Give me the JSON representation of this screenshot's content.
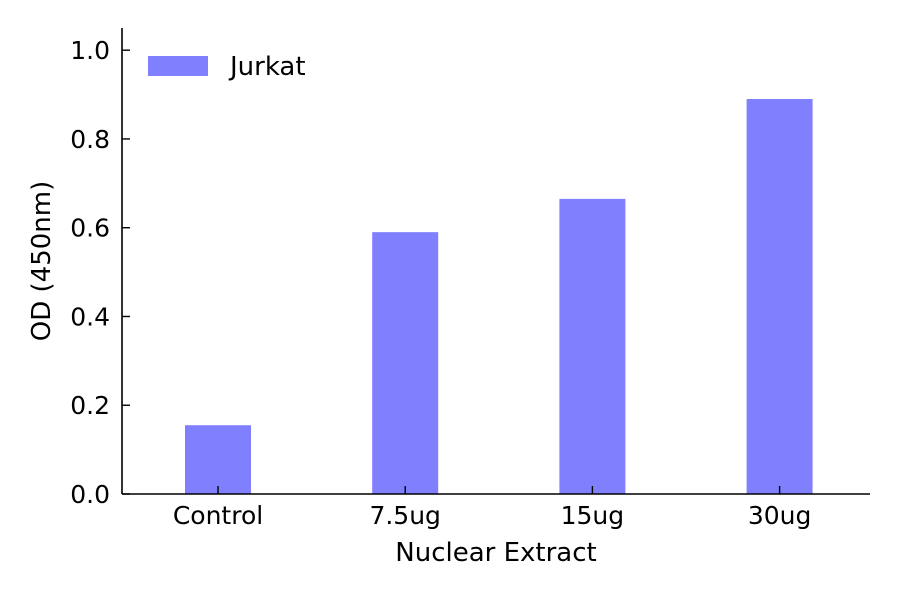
{
  "chart_data": {
    "type": "bar",
    "title": "",
    "xlabel": "Nuclear Extract",
    "ylabel": "OD (450nm)",
    "categories": [
      "Control",
      "7.5ug",
      "15ug",
      "30ug"
    ],
    "series": [
      {
        "name": "Jurkat",
        "values": [
          0.155,
          0.59,
          0.665,
          0.89
        ],
        "color": "#8080ff"
      }
    ],
    "ylim": [
      0,
      1.05
    ],
    "yticks": [
      0.0,
      0.2,
      0.4,
      0.6,
      0.8,
      1.0
    ],
    "ytick_labels": [
      "0.0",
      "0.2",
      "0.4",
      "0.6",
      "0.8",
      "1.0"
    ],
    "grid": false,
    "legend_position": "top-left"
  }
}
